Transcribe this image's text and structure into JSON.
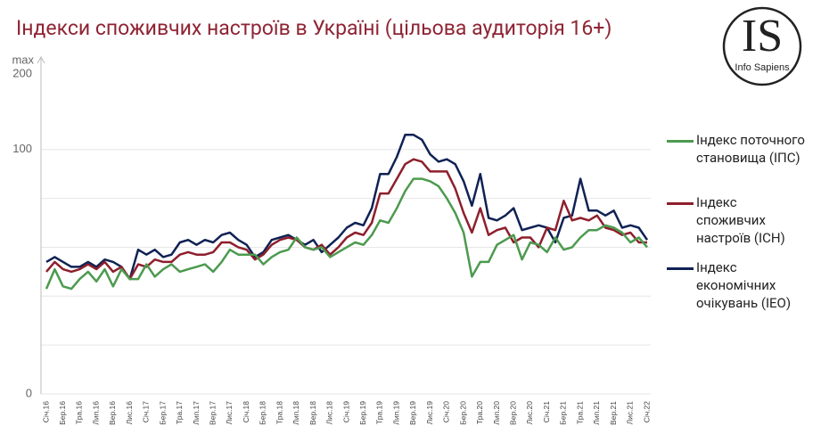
{
  "chart_data": {
    "type": "line",
    "title": "Індекси споживчих настроїв в Україні (цільова аудиторія 16+)",
    "y_axis_max_text": "max",
    "y_axis_top_text": "200",
    "ylim": [
      0,
      136
    ],
    "yticks": [
      0,
      100
    ],
    "grid_values": [
      20,
      40,
      60,
      80
    ],
    "grid": true,
    "logo": {
      "mark": "IS",
      "text": "Info Sapiens"
    },
    "categories": [
      "Січ.16",
      null,
      "Бер.16",
      null,
      "Тра.16",
      null,
      "Лип.16",
      null,
      "Вер.16",
      null,
      "Лис.16",
      null,
      "Січ.17",
      null,
      "Бер.17",
      null,
      "Тра.17",
      null,
      "Лип.17",
      null,
      "Вер.17",
      null,
      "Лис.17",
      null,
      "Січ.18",
      null,
      "Бер.18",
      null,
      "Тра.18",
      null,
      "Лип.18",
      null,
      "Вер.18",
      null,
      "Лис.18",
      null,
      "Січ.19",
      null,
      "Бер.19",
      null,
      "Тра.19",
      null,
      "Лип.19",
      null,
      "Вер.19",
      null,
      "Лис.19",
      null,
      "Січ.20",
      null,
      "Бер.20",
      null,
      "Тра.20",
      null,
      "Лип.20",
      null,
      "Вер.20",
      null,
      "Лис.20",
      null,
      "Січ.21",
      null,
      "Бер.21",
      null,
      "Тра.21",
      null,
      "Лип.21",
      null,
      "Вер.21",
      null,
      "Лис.21",
      null,
      "Січ.22"
    ],
    "series": [
      {
        "name": "Індекс поточного становища (ІПС)",
        "color": "#4c9a4f",
        "values": [
          43,
          51,
          44,
          43,
          47,
          50,
          46,
          51,
          44,
          51,
          47,
          47,
          53,
          48,
          51,
          53,
          50,
          51,
          52,
          53,
          50,
          54,
          59,
          57,
          57,
          57,
          53,
          56,
          58,
          59,
          64,
          60,
          59,
          60,
          56,
          58,
          60,
          62,
          61,
          65,
          71,
          70,
          76,
          83,
          88,
          88,
          87,
          85,
          80,
          74,
          66,
          48,
          54,
          54,
          61,
          63,
          65,
          55,
          62,
          61,
          58,
          64,
          59,
          60,
          64,
          67,
          67,
          69,
          68,
          66,
          62,
          64,
          60
        ]
      },
      {
        "name": "Індекс споживчих настроїв (ІСН)",
        "color": "#8e1f2c",
        "values": [
          50,
          54,
          51,
          50,
          51,
          53,
          51,
          54,
          50,
          52,
          47,
          53,
          52,
          55,
          54,
          54,
          57,
          58,
          57,
          57,
          58,
          62,
          62,
          60,
          59,
          55,
          57,
          61,
          63,
          64,
          63,
          60,
          59,
          61,
          57,
          60,
          64,
          66,
          65,
          70,
          82,
          82,
          88,
          94,
          96,
          95,
          91,
          91,
          91,
          84,
          74,
          66,
          76,
          65,
          67,
          68,
          62,
          64,
          64,
          60,
          68,
          67,
          79,
          71,
          72,
          71,
          73,
          68,
          67,
          65,
          66,
          62,
          62
        ]
      },
      {
        "name": "Індекс економічних очікувань (ІЕО)",
        "color": "#0f2254",
        "values": [
          54,
          56,
          54,
          52,
          52,
          54,
          52,
          55,
          54,
          52,
          47,
          59,
          57,
          59,
          56,
          57,
          62,
          63,
          61,
          63,
          62,
          65,
          66,
          63,
          61,
          56,
          58,
          63,
          64,
          65,
          63,
          61,
          63,
          58,
          61,
          64,
          68,
          70,
          69,
          76,
          90,
          90,
          97,
          106,
          106,
          104,
          98,
          95,
          96,
          94,
          87,
          77,
          90,
          72,
          71,
          73,
          76,
          67,
          68,
          69,
          68,
          62,
          72,
          73,
          88,
          75,
          75,
          73,
          75,
          68,
          69,
          68,
          63
        ]
      }
    ]
  }
}
